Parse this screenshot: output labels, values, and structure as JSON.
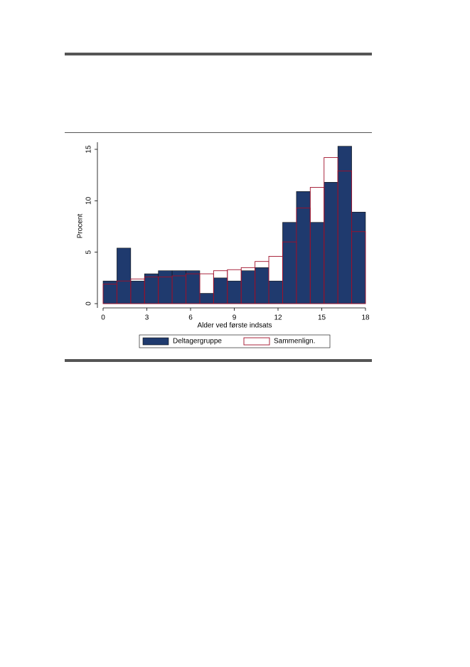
{
  "chart_data": {
    "type": "histogram",
    "x_label": "Alder ved første indsats",
    "y_label": "Procent",
    "bins": [
      0,
      0.947,
      1.895,
      2.842,
      3.789,
      4.737,
      5.684,
      6.632,
      7.579,
      8.526,
      9.474,
      10.421,
      11.368,
      12.316,
      13.263,
      14.211,
      15.158,
      16.105,
      17.053,
      18
    ],
    "series": [
      {
        "name": "Deltagergruppe",
        "color": "#1f3a6e",
        "values": [
          2.2,
          5.4,
          2.2,
          2.9,
          3.2,
          3.2,
          3.2,
          1.0,
          2.5,
          2.2,
          3.2,
          3.5,
          2.2,
          7.9,
          10.9,
          7.9,
          11.8,
          15.3,
          8.9
        ]
      },
      {
        "name": "Sammenlign.",
        "color": "#a0102a",
        "values": [
          1.9,
          2.2,
          2.4,
          2.6,
          2.6,
          2.7,
          2.9,
          2.9,
          3.2,
          3.3,
          3.5,
          4.1,
          4.6,
          6.0,
          9.3,
          11.3,
          14.2,
          12.9,
          7.0
        ]
      }
    ],
    "xlim": [
      0,
      18
    ],
    "xticks": [
      0,
      3,
      6,
      9,
      12,
      15,
      18
    ],
    "ylim": [
      0,
      15
    ],
    "yticks": [
      0,
      5,
      10,
      15
    ]
  }
}
